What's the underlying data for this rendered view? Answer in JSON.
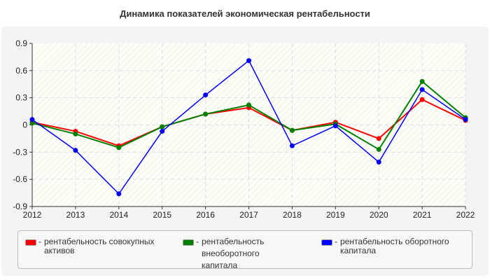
{
  "chart_data": {
    "type": "line",
    "title": "Динамика показателей экономическая рентабельности",
    "x": [
      "2012",
      "2013",
      "2014",
      "2015",
      "2016",
      "2017",
      "2018",
      "2019",
      "2020",
      "2021",
      "2022"
    ],
    "ylim": [
      -0.9,
      0.9
    ],
    "yticks": [
      "0.9",
      "0.6",
      "0.3",
      "0",
      "-0.3",
      "-0.6",
      "-0.9"
    ],
    "ytick_values": [
      0.9,
      0.6,
      0.3,
      0,
      -0.3,
      -0.6,
      -0.9
    ],
    "grid": true,
    "legend_position": "bottom",
    "series": [
      {
        "name": "рентабельность совокупных активов",
        "color": "#ff0000",
        "values": [
          0.03,
          -0.07,
          -0.23,
          -0.02,
          0.12,
          0.19,
          -0.06,
          0.03,
          -0.15,
          0.28,
          0.05
        ]
      },
      {
        "name": "рентабельность внеоборотного капитала",
        "color": "#008000",
        "values": [
          0.02,
          -0.1,
          -0.25,
          -0.02,
          0.12,
          0.22,
          -0.06,
          0.01,
          -0.27,
          0.48,
          0.08
        ]
      },
      {
        "name": "рентабельность оборотного капитала",
        "color": "#0000ff",
        "values": [
          0.06,
          -0.28,
          -0.76,
          -0.07,
          0.33,
          0.71,
          -0.23,
          -0.01,
          -0.41,
          0.39,
          0.06
        ]
      }
    ]
  }
}
